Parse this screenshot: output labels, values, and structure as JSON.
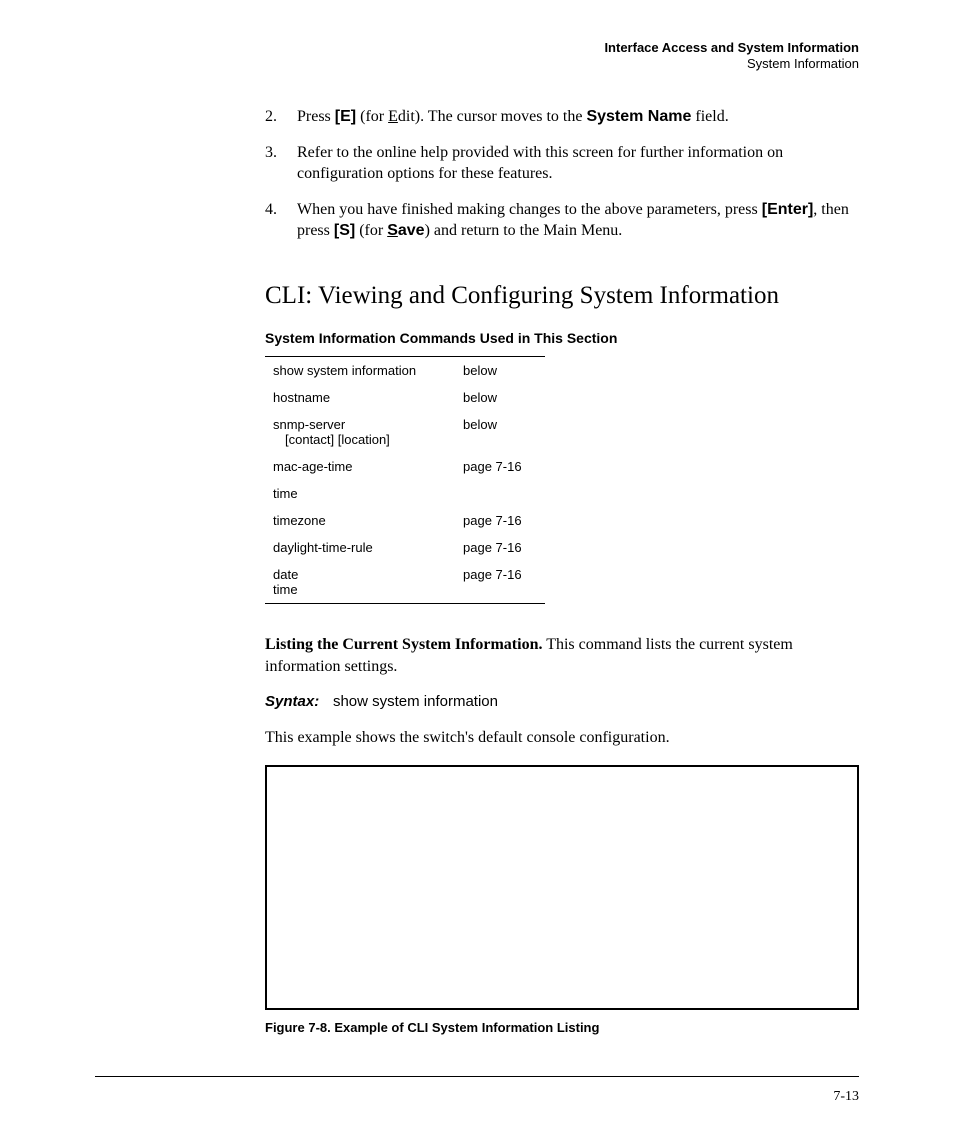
{
  "header": {
    "title": "Interface Access and System Information",
    "subtitle": "System Information"
  },
  "steps": [
    {
      "num": "2.",
      "pre": "Press ",
      "key": "[E]",
      "mid1": " (for ",
      "ul": "E",
      "mid2": "dit). The cursor moves to the ",
      "bold": "System Name",
      "post": " field."
    },
    {
      "num": "3.",
      "text": "Refer to the online help provided with this screen for further information on configuration options for these features."
    },
    {
      "num": "4.",
      "pre": "When you have finished making changes to the above parameters, press ",
      "key1": "[Enter]",
      "mid1": ", then press ",
      "key2": "[S]",
      "mid2": " (for ",
      "ul": "S",
      "mid3": "ave",
      "post": ") and return to the Main Menu."
    }
  ],
  "section_heading": "CLI: Viewing and Configuring System Information",
  "subsection_heading": "System Information Commands Used in This Section",
  "table": {
    "rows": [
      {
        "cmd": "show system information",
        "ref": "below",
        "sub": null
      },
      {
        "cmd": "hostname",
        "ref": "below",
        "sub": null
      },
      {
        "cmd": "snmp-server",
        "ref": "below",
        "sub": "[contact] [location]"
      },
      {
        "cmd": "mac-age-time",
        "ref": "page 7-16",
        "sub": null
      },
      {
        "cmd": "time",
        "ref": "",
        "sub": null
      }
    ],
    "subrows": [
      {
        "cmd": "timezone",
        "ref": "page 7-16"
      },
      {
        "cmd": "daylight-time-rule",
        "ref": "page 7-16"
      },
      {
        "cmd": "date",
        "ref": "page 7-16",
        "extra": "time"
      }
    ]
  },
  "listing": {
    "lead_bold": "Listing the Current System Information.",
    "lead_rest": "  This command lists the current system information settings."
  },
  "syntax": {
    "label": "Syntax:",
    "cmd": "show system information"
  },
  "example_text": "This example shows the switch's default console configuration.",
  "figure_caption": "Figure 7-8.    Example of CLI System Information Listing",
  "page_num": "7-13"
}
